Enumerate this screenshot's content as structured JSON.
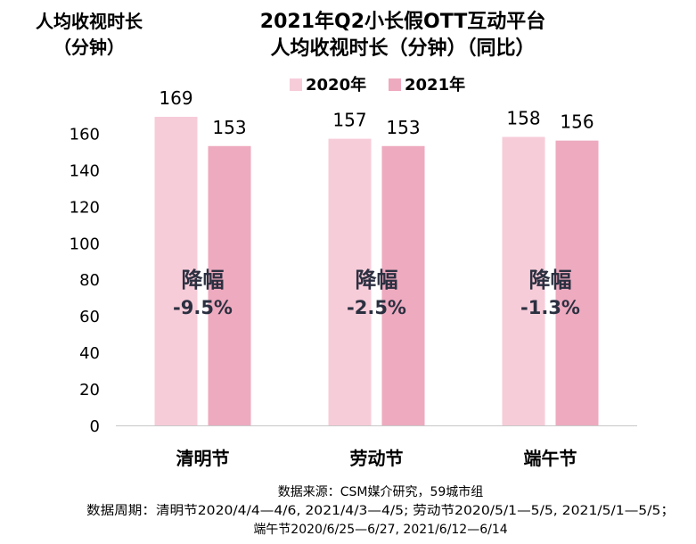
{
  "chart_data": {
    "type": "bar",
    "title_lines": [
      "2021年Q2小长假OTT互动平台",
      "人均收视时长（分钟）（同比）"
    ],
    "ylabel_lines": [
      "人均收视时长",
      "（分钟）"
    ],
    "categories": [
      "清明节",
      "劳动节",
      "端午节"
    ],
    "series": [
      {
        "name": "2020年",
        "values": [
          169,
          157,
          158
        ]
      },
      {
        "name": "2021年",
        "values": [
          153,
          153,
          156
        ]
      }
    ],
    "ylim": [
      0,
      180
    ],
    "yticks": [
      0,
      20,
      40,
      60,
      80,
      100,
      120,
      140,
      160
    ],
    "annotations": [
      {
        "label": "降幅",
        "value": "-9.5%"
      },
      {
        "label": "降幅",
        "value": "-2.5%"
      },
      {
        "label": "降幅",
        "value": "-1.3%"
      }
    ],
    "legend_position": "top-center",
    "grid": false
  },
  "colors": {
    "series_2020": "#f7ccd9",
    "series_2021": "#eeaabf",
    "annotation_text": "#2b3040",
    "axis": "#c8c8c8"
  },
  "source_lines": [
    "数据来源：CSM媒介研究，59城市组",
    "数据周期：清明节2020/4/4—4/6, 2021/4/3—4/5; 劳动节2020/5/1—5/5, 2021/5/1—5/5；",
    "端午节2020/6/25—6/27, 2021/6/12—6/14"
  ]
}
